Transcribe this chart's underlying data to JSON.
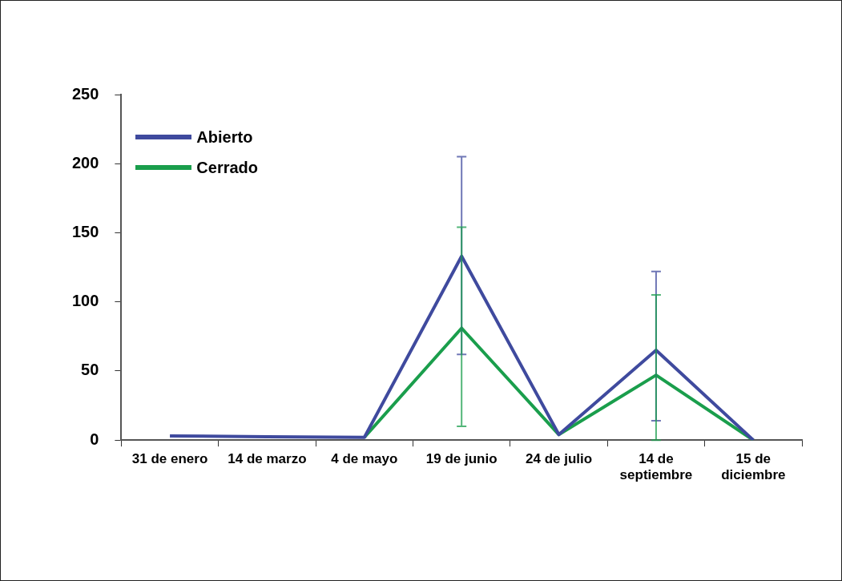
{
  "chart_data": {
    "type": "line",
    "categories": [
      "31 de enero",
      "14 de marzo",
      "4 de mayo",
      "19 de junio",
      "24 de julio",
      "14 de septiembre",
      "15 de diciembre"
    ],
    "series": [
      {
        "name": "Abierto",
        "color": "#3f4a9e",
        "values": [
          3,
          2.5,
          2,
          133,
          4,
          65,
          0
        ],
        "errors": [
          null,
          null,
          null,
          [
            62,
            205
          ],
          null,
          [
            14,
            122
          ],
          null
        ]
      },
      {
        "name": "Cerrado",
        "color": "#1a9e4c",
        "values": [
          null,
          null,
          2,
          81,
          4,
          47,
          0
        ],
        "errors": [
          null,
          null,
          null,
          [
            10,
            154
          ],
          null,
          [
            0,
            105
          ],
          null
        ]
      }
    ],
    "ylim": [
      0,
      250
    ],
    "yticks": [
      0,
      50,
      100,
      150,
      200,
      250
    ],
    "grid": false,
    "legend": "top left",
    "marker": "none",
    "line_style": "solid"
  }
}
